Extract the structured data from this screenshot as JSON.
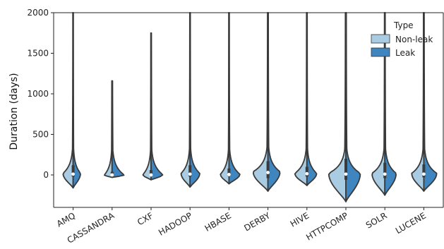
{
  "chart_data": {
    "type": "violin",
    "ylabel": "Duration (days)",
    "xlabel": "",
    "ylim": [
      -400,
      2000
    ],
    "yticks": [
      0,
      500,
      1000,
      1500,
      2000
    ],
    "categories": [
      "AMQ",
      "CASSANDRA",
      "CXF",
      "HADOOP",
      "HBASE",
      "DERBY",
      "HIVE",
      "HTTPCOMP",
      "SOLR",
      "LUCENE"
    ],
    "split_by": "Type",
    "series": [
      {
        "name": "Non-leak",
        "color": "#a9cce3"
      },
      {
        "name": "Leak",
        "color": "#3f86c0"
      }
    ],
    "legend": {
      "title": "Type",
      "position": "upper-right"
    },
    "grid": false,
    "violins": [
      {
        "category": "AMQ",
        "min": -160,
        "max": 2000,
        "median": 10,
        "q1": -20,
        "q3": 120,
        "nonleak_width": 0.52,
        "leak_width": 0.38,
        "tail_lo": -160,
        "mode": 20
      },
      {
        "category": "CASSANDRA",
        "min": -30,
        "max": 1160,
        "median": 0,
        "q1": -10,
        "q3": 40,
        "nonleak_width": 0.4,
        "leak_width": 0.62,
        "tail_lo": -30,
        "mode": 0
      },
      {
        "category": "CXF",
        "min": -60,
        "max": 1750,
        "median": 0,
        "q1": -15,
        "q3": 60,
        "nonleak_width": 0.42,
        "leak_width": 0.6,
        "tail_lo": -60,
        "mode": 5
      },
      {
        "category": "HADOOP",
        "min": -150,
        "max": 2000,
        "median": 10,
        "q1": -20,
        "q3": 120,
        "nonleak_width": 0.46,
        "leak_width": 0.5,
        "tail_lo": -150,
        "mode": 20
      },
      {
        "category": "HBASE",
        "min": -110,
        "max": 2000,
        "median": 5,
        "q1": -15,
        "q3": 80,
        "nonleak_width": 0.44,
        "leak_width": 0.56,
        "tail_lo": -110,
        "mode": 10
      },
      {
        "category": "DERBY",
        "min": -200,
        "max": 2000,
        "median": 30,
        "q1": -40,
        "q3": 170,
        "nonleak_width": 0.76,
        "leak_width": 0.62,
        "tail_lo": -200,
        "mode": 40
      },
      {
        "category": "HIVE",
        "min": -130,
        "max": 2000,
        "median": 15,
        "q1": -20,
        "q3": 100,
        "nonleak_width": 0.62,
        "leak_width": 0.5,
        "tail_lo": -130,
        "mode": 20
      },
      {
        "category": "HTTPCOMP",
        "min": -330,
        "max": 2000,
        "median": 10,
        "q1": -60,
        "q3": 200,
        "nonleak_width": 0.88,
        "leak_width": 0.74,
        "tail_lo": -330,
        "mode": 20
      },
      {
        "category": "SOLR",
        "min": -250,
        "max": 2000,
        "median": 10,
        "q1": -40,
        "q3": 150,
        "nonleak_width": 0.66,
        "leak_width": 0.58,
        "tail_lo": -250,
        "mode": 20
      },
      {
        "category": "LUCENE",
        "min": -200,
        "max": 2000,
        "median": 10,
        "q1": -30,
        "q3": 130,
        "nonleak_width": 0.62,
        "leak_width": 0.66,
        "tail_lo": -200,
        "mode": 20
      }
    ]
  }
}
